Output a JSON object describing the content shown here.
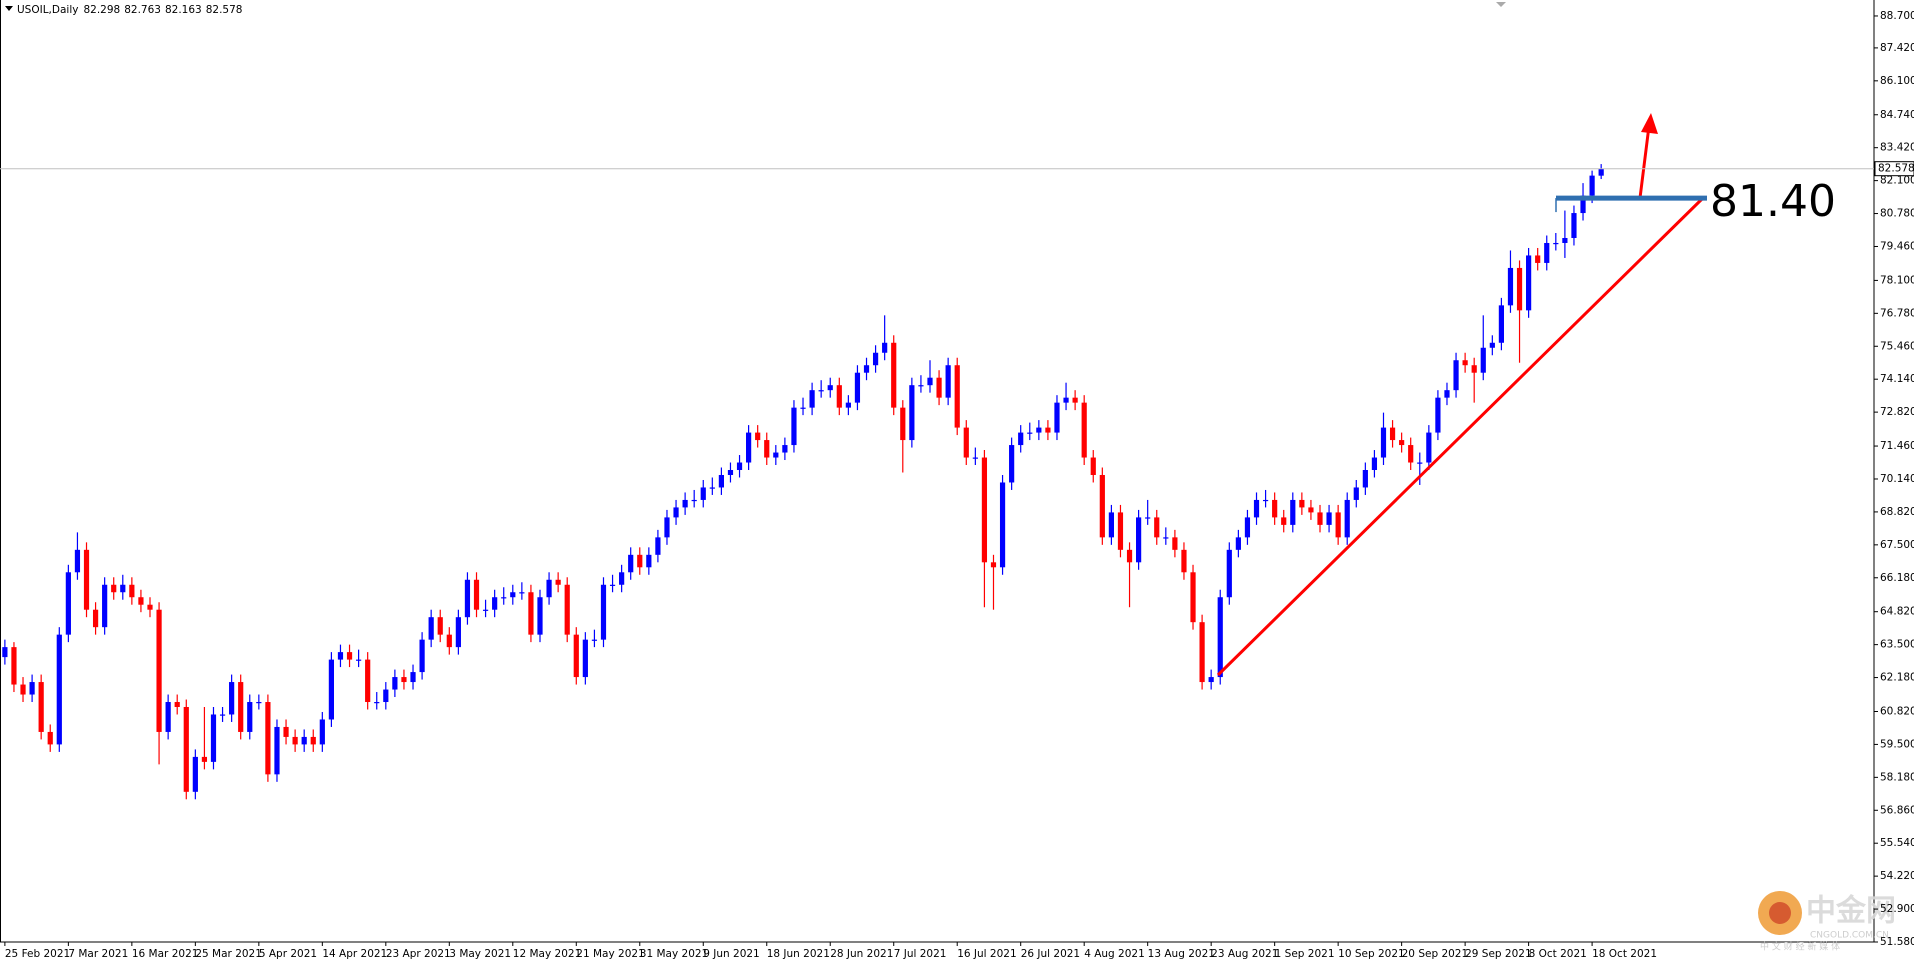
{
  "chart_data": {
    "type": "candlestick",
    "title": "USOIL,Daily",
    "annotation": "81.40",
    "level": {
      "value": 81.4,
      "label": "81.40"
    },
    "up_color": "#0000ff",
    "down_color": "#ff0000",
    "level_color": "#2f6fb0",
    "annotation_color": "#ff0000",
    "watermark": {
      "name": "中金网",
      "site": "CNGOLD.COM.CN",
      "slogan": "中 文 财 经 新 媒 体"
    },
    "ylim": [
      51.58,
      89.34
    ],
    "yticks": [
      {
        "value": 88.7,
        "label": "88.700"
      },
      {
        "value": 87.42,
        "label": "87.420"
      },
      {
        "value": 86.1,
        "label": "86.100"
      },
      {
        "value": 84.74,
        "label": "84.740"
      },
      {
        "value": 83.42,
        "label": "83.420"
      },
      {
        "value": 82.1,
        "label": "82.100"
      },
      {
        "value": 80.78,
        "label": "80.780"
      },
      {
        "value": 79.46,
        "label": "79.460"
      },
      {
        "value": 78.1,
        "label": "78.100"
      },
      {
        "value": 76.78,
        "label": "76.780"
      },
      {
        "value": 75.46,
        "label": "75.460"
      },
      {
        "value": 74.14,
        "label": "74.140"
      },
      {
        "value": 72.82,
        "label": "72.820"
      },
      {
        "value": 71.46,
        "label": "71.460"
      },
      {
        "value": 70.14,
        "label": "70.140"
      },
      {
        "value": 68.82,
        "label": "68.820"
      },
      {
        "value": 67.5,
        "label": "67.500"
      },
      {
        "value": 66.18,
        "label": "66.180"
      },
      {
        "value": 64.82,
        "label": "64.820"
      },
      {
        "value": 63.5,
        "label": "63.500"
      },
      {
        "value": 62.18,
        "label": "62.180"
      },
      {
        "value": 60.82,
        "label": "60.820"
      },
      {
        "value": 59.5,
        "label": "59.500"
      },
      {
        "value": 58.18,
        "label": "58.180"
      },
      {
        "value": 56.86,
        "label": "56.860"
      },
      {
        "value": 55.54,
        "label": "55.540"
      },
      {
        "value": 54.22,
        "label": "54.220"
      },
      {
        "value": 52.9,
        "label": "52.900"
      },
      {
        "value": 51.58,
        "label": "51.580"
      }
    ],
    "categories": [
      "25 Feb 2021",
      null,
      null,
      null,
      null,
      null,
      null,
      "7 Mar 2021",
      null,
      null,
      null,
      null,
      null,
      null,
      "16 Mar 2021",
      null,
      null,
      null,
      null,
      null,
      null,
      "25 Mar 2021",
      null,
      null,
      null,
      null,
      null,
      null,
      "5 Apr 2021",
      null,
      null,
      null,
      null,
      null,
      null,
      "14 Apr 2021",
      null,
      null,
      null,
      null,
      null,
      null,
      "23 Apr 2021",
      null,
      null,
      null,
      null,
      null,
      null,
      "3 May 2021",
      null,
      null,
      null,
      null,
      null,
      null,
      "12 May 2021",
      null,
      null,
      null,
      null,
      null,
      null,
      "21 May 2021",
      null,
      null,
      null,
      null,
      null,
      null,
      "31 May 2021",
      null,
      null,
      null,
      null,
      null,
      null,
      "9 Jun 2021",
      null,
      null,
      null,
      null,
      null,
      null,
      "18 Jun 2021",
      null,
      null,
      null,
      null,
      null,
      null,
      "28 Jun 2021",
      null,
      null,
      null,
      null,
      null,
      null,
      "7 Jul 2021",
      null,
      null,
      null,
      null,
      null,
      null,
      "16 Jul 2021",
      null,
      null,
      null,
      null,
      null,
      null,
      "26 Jul 2021",
      null,
      null,
      null,
      null,
      null,
      null,
      "4 Aug 2021",
      null,
      null,
      null,
      null,
      null,
      null,
      "13 Aug 2021",
      null,
      null,
      null,
      null,
      null,
      null,
      "23 Aug 2021",
      null,
      null,
      null,
      null,
      null,
      null,
      "1 Sep 2021",
      null,
      null,
      null,
      null,
      null,
      null,
      "10 Sep 2021",
      null,
      null,
      null,
      null,
      null,
      null,
      "20 Sep 2021",
      null,
      null,
      null,
      null,
      null,
      null,
      "29 Sep 2021",
      null,
      null,
      null,
      null,
      null,
      null,
      "8 Oct 2021",
      null,
      null,
      null,
      null,
      null,
      null,
      "18 Oct 2021",
      null
    ],
    "open": [
      63.0,
      63.4,
      61.9,
      61.5,
      62.0,
      60.0,
      59.5,
      63.9,
      66.4,
      67.3,
      64.9,
      64.2,
      65.9,
      65.6,
      65.9,
      65.4,
      65.1,
      64.9,
      60.0,
      61.2,
      61.0,
      57.6,
      59.0,
      58.8,
      60.7,
      60.7,
      62.0,
      60.0,
      61.2,
      61.2,
      58.3,
      60.2,
      59.8,
      59.5,
      59.8,
      59.5,
      60.5,
      62.9,
      63.2,
      62.9,
      62.9,
      61.2,
      61.2,
      61.7,
      62.2,
      62.0,
      62.4,
      63.7,
      64.6,
      63.9,
      63.4,
      64.6,
      66.1,
      64.9,
      64.9,
      65.4,
      65.4,
      65.6,
      65.6,
      63.9,
      65.4,
      66.1,
      65.9,
      63.9,
      62.2,
      63.7,
      63.7,
      65.9,
      65.9,
      66.4,
      67.1,
      66.6,
      67.1,
      67.8,
      68.6,
      69.0,
      69.3,
      69.3,
      69.8,
      69.8,
      70.3,
      70.5,
      70.8,
      72.0,
      71.7,
      71.0,
      71.2,
      71.5,
      73.0,
      73.0,
      73.7,
      73.7,
      73.9,
      73.0,
      73.2,
      74.4,
      74.7,
      75.2,
      75.6,
      73.0,
      71.7,
      73.9,
      73.9,
      74.2,
      73.4,
      74.7,
      72.2,
      71.0,
      71.0,
      66.8,
      66.6,
      70.0,
      71.5,
      72.0,
      72.0,
      72.2,
      72.0,
      73.2,
      73.4,
      73.2,
      71.0,
      70.3,
      67.8,
      68.8,
      67.3,
      66.8,
      68.6,
      68.6,
      67.8,
      67.8,
      67.3,
      66.4,
      64.4,
      62.0,
      62.2,
      65.4,
      67.3,
      67.8,
      68.6,
      69.3,
      69.3,
      68.6,
      68.3,
      69.3,
      69.0,
      68.8,
      68.3,
      68.8,
      67.8,
      69.3,
      69.8,
      70.5,
      71.0,
      72.2,
      71.7,
      71.5,
      70.8,
      70.8,
      72.0,
      73.4,
      73.7,
      74.9,
      74.7,
      74.4,
      75.4,
      75.6,
      77.1,
      78.6,
      76.9,
      79.1,
      78.8,
      79.6,
      79.6,
      79.8,
      80.8,
      81.5,
      82.298
    ],
    "high": [
      63.7,
      63.6,
      62.2,
      62.3,
      62.3,
      60.3,
      64.2,
      66.7,
      68.0,
      67.6,
      65.2,
      66.2,
      66.2,
      66.3,
      66.2,
      65.7,
      65.4,
      65.2,
      61.5,
      61.5,
      61.3,
      59.3,
      61.0,
      61.0,
      61.0,
      62.3,
      62.3,
      61.5,
      61.5,
      61.5,
      60.5,
      60.5,
      60.1,
      60.1,
      60.1,
      60.8,
      63.2,
      63.5,
      63.5,
      63.3,
      63.2,
      61.6,
      62.0,
      62.5,
      62.5,
      62.7,
      64.0,
      64.9,
      64.9,
      64.2,
      64.9,
      66.4,
      66.4,
      65.3,
      65.7,
      65.8,
      65.9,
      66.0,
      65.9,
      65.7,
      66.4,
      66.4,
      66.2,
      64.2,
      64.0,
      64.1,
      66.2,
      66.3,
      66.7,
      67.4,
      67.4,
      67.4,
      68.1,
      68.9,
      69.3,
      69.6,
      69.7,
      70.1,
      70.2,
      70.6,
      70.8,
      71.1,
      72.3,
      72.3,
      72.0,
      71.5,
      71.8,
      73.3,
      73.4,
      74.0,
      74.1,
      74.2,
      74.2,
      73.5,
      74.7,
      75.0,
      75.5,
      76.7,
      75.9,
      73.3,
      74.2,
      74.3,
      74.9,
      74.5,
      75.0,
      75.0,
      72.5,
      71.4,
      71.3,
      67.1,
      70.3,
      71.8,
      72.3,
      72.4,
      72.5,
      72.5,
      73.5,
      74.0,
      73.7,
      73.5,
      71.3,
      70.6,
      69.1,
      69.1,
      67.6,
      68.9,
      69.3,
      68.9,
      68.2,
      68.1,
      67.6,
      66.7,
      64.7,
      62.5,
      65.7,
      67.6,
      68.1,
      68.9,
      69.6,
      69.7,
      69.6,
      68.9,
      69.6,
      69.6,
      69.3,
      69.1,
      69.1,
      69.1,
      69.6,
      70.1,
      70.8,
      71.3,
      72.8,
      72.5,
      72.0,
      71.8,
      71.2,
      72.3,
      73.7,
      74.0,
      75.2,
      75.2,
      75.0,
      76.7,
      75.9,
      77.4,
      79.3,
      78.9,
      79.4,
      79.4,
      79.9,
      80.0,
      80.9,
      81.1,
      82.0,
      82.5,
      82.763
    ],
    "low": [
      62.7,
      61.6,
      61.2,
      61.2,
      59.7,
      59.2,
      59.2,
      63.6,
      66.1,
      64.6,
      63.9,
      63.9,
      65.3,
      65.3,
      65.1,
      64.8,
      64.6,
      58.7,
      59.7,
      60.7,
      57.3,
      57.3,
      58.5,
      58.5,
      60.4,
      60.4,
      59.7,
      59.7,
      60.9,
      58.0,
      58.0,
      59.5,
      59.2,
      59.2,
      59.2,
      59.2,
      60.2,
      62.6,
      62.6,
      62.6,
      60.9,
      60.9,
      60.9,
      61.4,
      61.7,
      61.7,
      62.1,
      63.4,
      63.6,
      63.1,
      63.1,
      64.3,
      64.6,
      64.6,
      64.6,
      65.1,
      65.1,
      65.3,
      63.6,
      63.6,
      65.1,
      65.6,
      63.6,
      61.9,
      61.9,
      63.4,
      63.4,
      65.6,
      65.6,
      66.1,
      66.3,
      66.3,
      66.8,
      67.5,
      68.3,
      68.7,
      69.0,
      69.0,
      69.5,
      69.5,
      70.0,
      70.2,
      70.5,
      71.4,
      70.7,
      70.7,
      70.9,
      71.2,
      72.7,
      72.7,
      73.4,
      73.4,
      72.7,
      72.7,
      72.9,
      74.1,
      74.4,
      74.9,
      72.7,
      70.4,
      71.4,
      73.6,
      73.6,
      73.1,
      73.1,
      71.9,
      70.7,
      70.7,
      65.0,
      64.9,
      66.3,
      69.7,
      71.2,
      71.7,
      71.7,
      71.7,
      71.7,
      72.9,
      72.9,
      70.7,
      70.0,
      67.5,
      67.5,
      67.0,
      65.0,
      66.5,
      68.3,
      67.5,
      67.5,
      67.0,
      66.1,
      64.1,
      61.7,
      61.7,
      61.9,
      65.1,
      67.0,
      67.5,
      68.3,
      69.0,
      68.3,
      68.0,
      68.0,
      68.7,
      68.5,
      68.0,
      68.0,
      67.5,
      67.5,
      69.0,
      69.5,
      70.2,
      70.7,
      71.4,
      71.2,
      70.5,
      69.9,
      70.5,
      71.7,
      73.1,
      73.4,
      74.4,
      73.2,
      74.1,
      75.1,
      75.3,
      76.8,
      74.8,
      76.6,
      78.5,
      78.5,
      79.3,
      79.0,
      79.5,
      80.5,
      81.2,
      82.163
    ],
    "close": [
      63.4,
      61.9,
      61.5,
      62.0,
      60.0,
      59.5,
      63.9,
      66.4,
      67.3,
      64.9,
      64.2,
      65.9,
      65.6,
      65.9,
      65.4,
      65.1,
      64.9,
      60.0,
      61.2,
      61.0,
      57.6,
      59.0,
      58.8,
      60.7,
      60.7,
      62.0,
      60.0,
      61.2,
      61.2,
      58.3,
      60.2,
      59.8,
      59.5,
      59.8,
      59.5,
      60.5,
      62.9,
      63.2,
      62.9,
      62.9,
      61.2,
      61.2,
      61.7,
      62.2,
      62.0,
      62.4,
      63.7,
      64.6,
      63.9,
      63.4,
      64.6,
      66.1,
      64.9,
      64.9,
      65.4,
      65.4,
      65.6,
      65.6,
      63.9,
      65.4,
      66.1,
      65.9,
      63.9,
      62.2,
      63.7,
      63.7,
      65.9,
      65.9,
      66.4,
      67.1,
      66.6,
      67.1,
      67.8,
      68.6,
      69.0,
      69.3,
      69.3,
      69.8,
      69.8,
      70.3,
      70.5,
      70.8,
      72.0,
      71.7,
      71.0,
      71.2,
      71.5,
      73.0,
      73.0,
      73.7,
      73.7,
      73.9,
      73.0,
      73.2,
      74.4,
      74.7,
      75.2,
      75.6,
      73.0,
      71.7,
      73.9,
      73.9,
      74.2,
      73.4,
      74.7,
      72.2,
      71.0,
      71.0,
      66.8,
      66.6,
      70.0,
      71.5,
      72.0,
      72.0,
      72.2,
      72.0,
      73.2,
      73.4,
      73.2,
      71.0,
      70.3,
      67.8,
      68.8,
      67.3,
      66.8,
      68.6,
      68.6,
      67.8,
      67.8,
      67.3,
      66.4,
      64.4,
      62.0,
      62.2,
      65.4,
      67.3,
      67.8,
      68.6,
      69.3,
      69.3,
      68.6,
      68.3,
      69.3,
      69.0,
      68.8,
      68.3,
      68.8,
      67.8,
      69.3,
      69.8,
      70.5,
      71.0,
      72.2,
      71.7,
      71.5,
      70.8,
      70.8,
      72.0,
      73.4,
      73.7,
      74.9,
      74.7,
      74.4,
      75.4,
      75.6,
      77.1,
      78.6,
      76.9,
      79.1,
      78.8,
      79.6,
      79.6,
      79.8,
      80.8,
      81.5,
      82.3,
      82.578
    ]
  }
}
